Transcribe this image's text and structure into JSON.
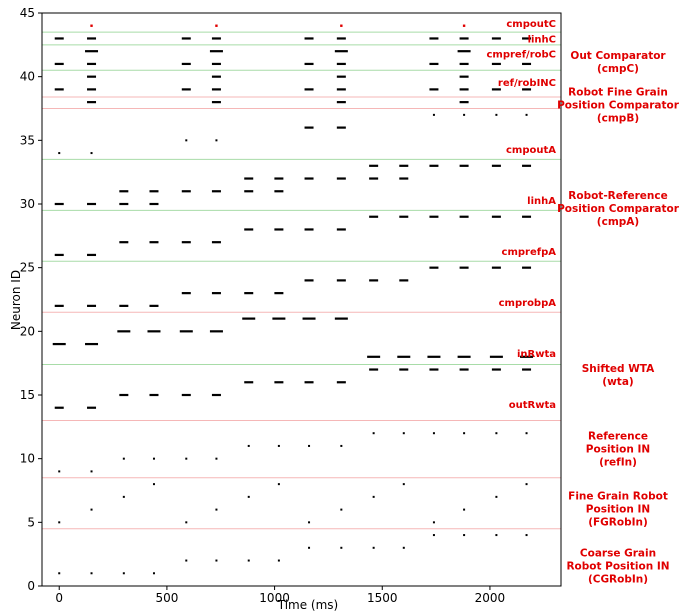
{
  "chart_data": {
    "type": "scatter",
    "xlabel": "Time (ms)",
    "ylabel": "Neuron ID",
    "xlim": [
      -80,
      2330
    ],
    "ylim": [
      0,
      45
    ],
    "xticks": [
      0,
      500,
      1000,
      1500,
      2000
    ],
    "yticks": [
      0,
      5,
      10,
      15,
      20,
      25,
      30,
      35,
      40,
      45
    ],
    "colors": {
      "spike": "#000000",
      "red_spike": "#e00000",
      "label": "#e00000",
      "green_line": "#9fd89f",
      "pink_line": "#f5b7b7"
    },
    "separators": [
      {
        "y": 4.5,
        "color": "pink"
      },
      {
        "y": 8.5,
        "color": "pink"
      },
      {
        "y": 13.0,
        "color": "pink"
      },
      {
        "y": 17.4,
        "color": "green"
      },
      {
        "y": 21.5,
        "color": "pink"
      },
      {
        "y": 25.5,
        "color": "green"
      },
      {
        "y": 29.5,
        "color": "green"
      },
      {
        "y": 33.5,
        "color": "green"
      },
      {
        "y": 37.5,
        "color": "pink"
      },
      {
        "y": 38.4,
        "color": "pink"
      },
      {
        "y": 40.5,
        "color": "green"
      },
      {
        "y": 42.5,
        "color": "green"
      },
      {
        "y": 43.5,
        "color": "green"
      }
    ],
    "band_labels": [
      {
        "text": "cmpoutC",
        "y": 44.2
      },
      {
        "text": "linhC",
        "y": 43.0
      },
      {
        "text": "cmpref/robC",
        "y": 41.8
      },
      {
        "text": "ref/robINC",
        "y": 39.6
      },
      {
        "text": "cmpoutA",
        "y": 34.3
      },
      {
        "text": "linhA",
        "y": 30.3
      },
      {
        "text": "cmprefpA",
        "y": 26.3
      },
      {
        "text": "cmprobpA",
        "y": 22.3
      },
      {
        "text": "inRwta",
        "y": 18.3
      },
      {
        "text": "outRwta",
        "y": 14.3
      }
    ],
    "group_labels": [
      {
        "lines": [
          "Out Comparator",
          "(cmpC)"
        ],
        "y": 41.2
      },
      {
        "lines": [
          "Robot Fine Grain",
          "Position Comparator",
          "(cmpB)"
        ],
        "y": 37.8
      },
      {
        "lines": [
          "Robot-Reference",
          "Position Comparator",
          "(cmpA)"
        ],
        "y": 29.7
      },
      {
        "lines": [
          "Shifted WTA",
          "(wta)"
        ],
        "y": 16.6
      },
      {
        "lines": [
          "Reference",
          "Position IN",
          "(refIn)"
        ],
        "y": 10.8
      },
      {
        "lines": [
          "Fine Grain Robot",
          "Position IN",
          "(FGRobIn)"
        ],
        "y": 6.1
      },
      {
        "lines": [
          "Coarse Grain",
          "Robot Position IN",
          "(CGRobIn)"
        ],
        "y": 1.6
      }
    ],
    "series": [
      {
        "neuron": 1,
        "style": "dot",
        "times": [
          0,
          150,
          300,
          440
        ]
      },
      {
        "neuron": 2,
        "style": "dot",
        "times": [
          590,
          730,
          880,
          1020
        ]
      },
      {
        "neuron": 3,
        "style": "dot",
        "times": [
          1160,
          1310,
          1460,
          1600
        ]
      },
      {
        "neuron": 4,
        "style": "dot",
        "times": [
          1740,
          1880,
          2030,
          2170
        ]
      },
      {
        "neuron": 5,
        "style": "dot",
        "times": [
          0,
          590,
          1160,
          1740
        ]
      },
      {
        "neuron": 6,
        "style": "dot",
        "times": [
          150,
          730,
          1310,
          1880
        ]
      },
      {
        "neuron": 7,
        "style": "dot",
        "times": [
          300,
          880,
          1460,
          2030
        ]
      },
      {
        "neuron": 8,
        "style": "dot",
        "times": [
          440,
          1020,
          1600,
          2170
        ]
      },
      {
        "neuron": 9,
        "style": "dot",
        "times": [
          0,
          150
        ]
      },
      {
        "neuron": 10,
        "style": "dot",
        "times": [
          300,
          440,
          590,
          730
        ]
      },
      {
        "neuron": 11,
        "style": "dot",
        "times": [
          880,
          1020,
          1160,
          1310
        ]
      },
      {
        "neuron": 12,
        "style": "dot",
        "times": [
          1460,
          1600,
          1740,
          1880,
          2030,
          2170
        ]
      },
      {
        "neuron": 14,
        "style": "dash",
        "times": [
          0,
          150
        ]
      },
      {
        "neuron": 15,
        "style": "dash",
        "times": [
          300,
          440,
          590,
          730
        ]
      },
      {
        "neuron": 16,
        "style": "dash",
        "times": [
          880,
          1020,
          1160,
          1310
        ]
      },
      {
        "neuron": 17,
        "style": "dash",
        "times": [
          1460,
          1600,
          1740,
          1880,
          2030,
          2170
        ]
      },
      {
        "neuron": 18,
        "style": "long",
        "times": [
          1460,
          1600,
          1740,
          1880,
          2030,
          2170
        ]
      },
      {
        "neuron": 19,
        "style": "long",
        "times": [
          0,
          150
        ]
      },
      {
        "neuron": 20,
        "style": "long",
        "times": [
          300,
          440,
          590,
          730
        ]
      },
      {
        "neuron": 21,
        "style": "long",
        "times": [
          880,
          1020,
          1160,
          1310
        ]
      },
      {
        "neuron": 22,
        "style": "dash",
        "times": [
          0,
          150,
          300,
          440
        ]
      },
      {
        "neuron": 23,
        "style": "dash",
        "times": [
          590,
          730,
          880,
          1020
        ]
      },
      {
        "neuron": 24,
        "style": "dash",
        "times": [
          1160,
          1310,
          1460,
          1600
        ]
      },
      {
        "neuron": 25,
        "style": "dash",
        "times": [
          1740,
          1880,
          2030,
          2170
        ]
      },
      {
        "neuron": 26,
        "style": "dash",
        "times": [
          0,
          150
        ]
      },
      {
        "neuron": 27,
        "style": "dash",
        "times": [
          300,
          440,
          590,
          730
        ]
      },
      {
        "neuron": 28,
        "style": "dash",
        "times": [
          880,
          1020,
          1160,
          1310
        ]
      },
      {
        "neuron": 29,
        "style": "dash",
        "times": [
          1460,
          1600,
          1740,
          1880,
          2030,
          2170
        ]
      },
      {
        "neuron": 30,
        "style": "dash",
        "times": [
          0,
          150,
          300,
          440
        ]
      },
      {
        "neuron": 31,
        "style": "dash",
        "times": [
          300,
          440,
          590,
          730,
          880,
          1020
        ]
      },
      {
        "neuron": 32,
        "style": "dash",
        "times": [
          880,
          1020,
          1160,
          1310,
          1460,
          1600
        ]
      },
      {
        "neuron": 33,
        "style": "dash",
        "times": [
          1460,
          1600,
          1740,
          1880,
          2030,
          2170
        ]
      },
      {
        "neuron": 34,
        "style": "dot",
        "times": [
          0,
          150
        ]
      },
      {
        "neuron": 35,
        "style": "dot",
        "times": [
          590,
          730
        ]
      },
      {
        "neuron": 36,
        "style": "dash",
        "times": [
          1160,
          1310
        ]
      },
      {
        "neuron": 37,
        "style": "dot",
        "times": [
          1740,
          1880,
          2030,
          2170
        ]
      },
      {
        "neuron": 38,
        "style": "dash",
        "times": [
          150,
          730,
          1310,
          1880
        ]
      },
      {
        "neuron": 39,
        "style": "dash",
        "times": [
          0,
          150,
          590,
          730,
          1160,
          1310,
          1740,
          1880,
          2030,
          2170
        ]
      },
      {
        "neuron": 40,
        "style": "dash",
        "times": [
          150,
          730,
          1310,
          1880
        ]
      },
      {
        "neuron": 41,
        "style": "dash",
        "times": [
          0,
          150,
          590,
          730,
          1160,
          1310,
          1740,
          1880,
          2030,
          2170
        ]
      },
      {
        "neuron": 42,
        "style": "long",
        "times": [
          150,
          730,
          1310,
          1880
        ]
      },
      {
        "neuron": 43,
        "style": "dash",
        "times": [
          0,
          150,
          590,
          730,
          1160,
          1310,
          1740,
          1880,
          2030,
          2170
        ]
      },
      {
        "neuron": 44,
        "style": "red",
        "times": [
          150,
          730,
          1310,
          1880
        ]
      }
    ]
  }
}
